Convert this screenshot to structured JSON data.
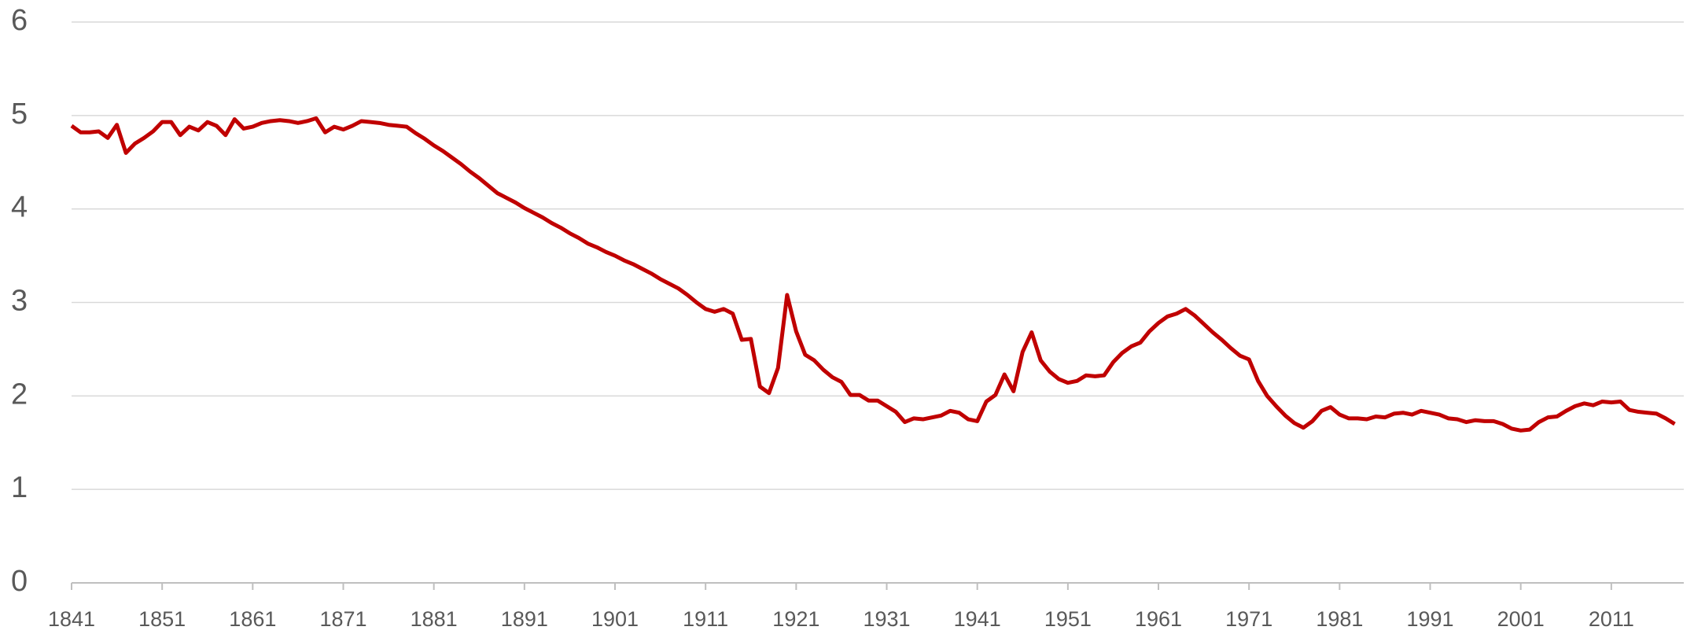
{
  "chart_data": {
    "type": "line",
    "x": [
      1841,
      1842,
      1843,
      1844,
      1845,
      1846,
      1847,
      1848,
      1849,
      1850,
      1851,
      1852,
      1853,
      1854,
      1855,
      1856,
      1857,
      1858,
      1859,
      1860,
      1861,
      1862,
      1863,
      1864,
      1865,
      1866,
      1867,
      1868,
      1869,
      1870,
      1871,
      1872,
      1873,
      1874,
      1875,
      1876,
      1877,
      1878,
      1879,
      1880,
      1881,
      1882,
      1883,
      1884,
      1885,
      1886,
      1887,
      1888,
      1889,
      1890,
      1891,
      1892,
      1893,
      1894,
      1895,
      1896,
      1897,
      1898,
      1899,
      1900,
      1901,
      1902,
      1903,
      1904,
      1905,
      1906,
      1907,
      1908,
      1909,
      1910,
      1911,
      1912,
      1913,
      1914,
      1915,
      1916,
      1917,
      1918,
      1919,
      1920,
      1921,
      1922,
      1923,
      1924,
      1925,
      1926,
      1927,
      1928,
      1929,
      1930,
      1931,
      1932,
      1933,
      1934,
      1935,
      1936,
      1937,
      1938,
      1939,
      1940,
      1941,
      1942,
      1943,
      1944,
      1945,
      1946,
      1947,
      1948,
      1949,
      1950,
      1951,
      1952,
      1953,
      1954,
      1955,
      1956,
      1957,
      1958,
      1959,
      1960,
      1961,
      1962,
      1963,
      1964,
      1965,
      1966,
      1967,
      1968,
      1969,
      1970,
      1971,
      1972,
      1973,
      1974,
      1975,
      1976,
      1977,
      1978,
      1979,
      1980,
      1981,
      1982,
      1983,
      1984,
      1985,
      1986,
      1987,
      1988,
      1989,
      1990,
      1991,
      1992,
      1993,
      1994,
      1995,
      1996,
      1997,
      1998,
      1999,
      2000,
      2001,
      2002,
      2003,
      2004,
      2005,
      2006,
      2007,
      2008,
      2009,
      2010,
      2011,
      2012,
      2013,
      2014,
      2015,
      2016,
      2017,
      2018
    ],
    "values": [
      4.89,
      4.82,
      4.82,
      4.83,
      4.76,
      4.9,
      4.6,
      4.7,
      4.76,
      4.83,
      4.93,
      4.93,
      4.79,
      4.88,
      4.84,
      4.93,
      4.89,
      4.79,
      4.96,
      4.86,
      4.88,
      4.92,
      4.94,
      4.95,
      4.94,
      4.92,
      4.94,
      4.97,
      4.82,
      4.88,
      4.85,
      4.89,
      4.94,
      4.93,
      4.92,
      4.9,
      4.89,
      4.88,
      4.81,
      4.75,
      4.68,
      4.62,
      4.55,
      4.48,
      4.4,
      4.33,
      4.25,
      4.17,
      4.12,
      4.07,
      4.01,
      3.96,
      3.91,
      3.85,
      3.8,
      3.74,
      3.69,
      3.63,
      3.59,
      3.54,
      3.5,
      3.45,
      3.41,
      3.36,
      3.31,
      3.25,
      3.2,
      3.15,
      3.08,
      3.0,
      2.93,
      2.9,
      2.93,
      2.88,
      2.6,
      2.61,
      2.1,
      2.03,
      2.3,
      3.08,
      2.69,
      2.44,
      2.38,
      2.28,
      2.2,
      2.15,
      2.01,
      2.01,
      1.95,
      1.95,
      1.89,
      1.83,
      1.72,
      1.76,
      1.75,
      1.77,
      1.79,
      1.84,
      1.82,
      1.75,
      1.73,
      1.94,
      2.01,
      2.23,
      2.05,
      2.47,
      2.68,
      2.38,
      2.26,
      2.18,
      2.14,
      2.16,
      2.22,
      2.21,
      2.22,
      2.36,
      2.46,
      2.53,
      2.57,
      2.69,
      2.78,
      2.85,
      2.88,
      2.93,
      2.86,
      2.77,
      2.68,
      2.6,
      2.51,
      2.43,
      2.39,
      2.16,
      2.0,
      1.89,
      1.79,
      1.71,
      1.66,
      1.73,
      1.84,
      1.88,
      1.8,
      1.76,
      1.76,
      1.75,
      1.78,
      1.77,
      1.81,
      1.82,
      1.8,
      1.84,
      1.82,
      1.8,
      1.76,
      1.75,
      1.72,
      1.74,
      1.73,
      1.73,
      1.7,
      1.65,
      1.63,
      1.64,
      1.72,
      1.77,
      1.78,
      1.84,
      1.89,
      1.92,
      1.9,
      1.94,
      1.93,
      1.94,
      1.85,
      1.83,
      1.82,
      1.81,
      1.76,
      1.7
    ],
    "color": "#c00000",
    "xlim": [
      1841,
      2019
    ],
    "xticks": [
      1841,
      1851,
      1861,
      1871,
      1881,
      1891,
      1901,
      1911,
      1921,
      1931,
      1941,
      1951,
      1961,
      1971,
      1981,
      1991,
      2001,
      2011
    ],
    "ylim": [
      0,
      6
    ],
    "yticks": [
      0,
      1,
      2,
      3,
      4,
      5,
      6
    ],
    "grid": true
  }
}
